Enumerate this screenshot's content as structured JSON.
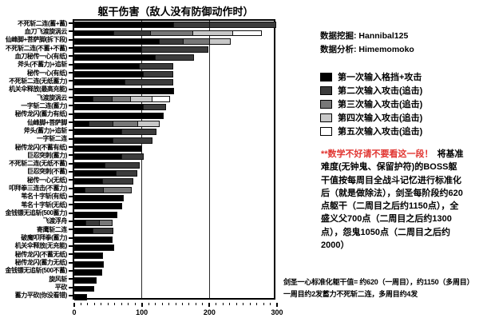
{
  "title": "躯干伤害（敌人没有防御动作时）",
  "credits": {
    "mining_label": "数据挖掘:",
    "mining_value": "Hannibal125",
    "analysis_label": "数据分析:",
    "analysis_value": "Himemomoko"
  },
  "legend": [
    {
      "label": "第一次输入格挡+攻击",
      "color": "#000000"
    },
    {
      "label": "第二次输入攻击(追击)",
      "color": "#3b3b3b"
    },
    {
      "label": "第三次输入攻击(追击)",
      "color": "#787878"
    },
    {
      "label": "第四次输入攻击(追击)",
      "color": "#c8c8c8"
    },
    {
      "label": "第五次输入攻击(追击)",
      "color": "#ffffff"
    }
  ],
  "note": {
    "red_text": "**数学不好请不要看这一段！",
    "black_text": "将基准难度(无钟鬼、保留护符)的BOSS躯干值按每周目全战斗记忆进行标准化后（就是做除法），剑圣每阶段约620点躯干（二周目之后约1150点），全盛义父700点（二周目之后约1300点），怨鬼1050点（二周目之后约2000）"
  },
  "footnote": {
    "line1": "剑圣一心标准化躯干值= 约620（一周目），约1150（多周目）",
    "line2": "一周目约2发蓄力不死斩二连，多周目约4发"
  },
  "red_color": "#e13430",
  "chart_data": {
    "type": "bar",
    "orientation": "horizontal",
    "title": "躯干伤害（敌人没有防御动作时）",
    "xlim": [
      0,
      300
    ],
    "x_ticks": [
      0,
      100,
      200,
      300
    ],
    "minor_tick_step": 10,
    "grid_x": [
      100,
      200
    ],
    "series_colors": [
      "#000000",
      "#3b3b3b",
      "#787878",
      "#c8c8c8",
      "#ffffff"
    ],
    "series_names": [
      "第一次输入格挡+攻击",
      "第二次输入攻击(追击)",
      "第三次输入攻击(追击)",
      "第四次输入攻击(追击)",
      "第五次输入攻击(追击)"
    ],
    "bars": [
      {
        "label": "不死斩二连(蓄+蓄)",
        "segments": [
          {
            "v": 148,
            "c": 0
          },
          {
            "v": 53,
            "c": 1
          },
          {
            "v": 98,
            "c": 1
          }
        ]
      },
      {
        "label": "血刀飞渡旋涡云",
        "segments": [
          {
            "v": 59,
            "c": 0
          },
          {
            "v": 54,
            "c": 1
          },
          {
            "v": 63,
            "c": 2
          },
          {
            "v": 59,
            "c": 3
          },
          {
            "v": 43,
            "c": 4
          }
        ]
      },
      {
        "label": "仙峰脚+菩萨脚(拆下段)",
        "segments": [
          {
            "v": 126,
            "c": 0
          },
          {
            "v": 36,
            "c": 1
          },
          {
            "v": 39,
            "c": 2
          },
          {
            "v": 30,
            "c": 3
          }
        ]
      },
      {
        "label": "不死斩二连(不蓄+不蓄)",
        "segments": [
          {
            "v": 100,
            "c": 0
          },
          {
            "v": 98,
            "c": 1
          }
        ]
      },
      {
        "label": "血刀秘传一心(有纸)",
        "segments": [
          {
            "v": 120,
            "c": 0
          },
          {
            "v": 57,
            "c": 1
          }
        ]
      },
      {
        "label": "斧头(不蓄力)+追斩",
        "segments": [
          {
            "v": 97,
            "c": 0
          },
          {
            "v": 50,
            "c": 1
          }
        ]
      },
      {
        "label": "秘传一心(有纸)",
        "segments": [
          {
            "v": 103,
            "c": 0
          },
          {
            "v": 44,
            "c": 1
          }
        ]
      },
      {
        "label": "不死斩二连(无纸蓄力)",
        "segments": [
          {
            "v": 75,
            "c": 0
          },
          {
            "v": 72,
            "c": 1
          }
        ]
      },
      {
        "label": "机关伞释放(最高充能)",
        "segments": [
          {
            "v": 148,
            "c": 0
          }
        ]
      },
      {
        "label": "飞渡旋涡云",
        "segments": [
          {
            "v": 28,
            "c": 0
          },
          {
            "v": 29,
            "c": 1
          },
          {
            "v": 27,
            "c": 2
          },
          {
            "v": 32,
            "c": 3
          },
          {
            "v": 26,
            "c": 4
          }
        ]
      },
      {
        "label": "一字斩二连(蓄力)",
        "segments": [
          {
            "v": 103,
            "c": 0
          },
          {
            "v": 33,
            "c": 1
          }
        ]
      },
      {
        "label": "秘传龙闪(蓄力有纸)",
        "segments": [
          {
            "v": 132,
            "c": 0
          }
        ]
      },
      {
        "label": "仙峰脚+菩萨脚",
        "segments": [
          {
            "v": 22,
            "c": 0
          },
          {
            "v": 36,
            "c": 1
          },
          {
            "v": 37,
            "c": 2
          },
          {
            "v": 31,
            "c": 3
          }
        ]
      },
      {
        "label": "斧头(蓄力)+追斩",
        "segments": [
          {
            "v": 71,
            "c": 0
          },
          {
            "v": 51,
            "c": 1
          }
        ]
      },
      {
        "label": "一字斩二连",
        "segments": [
          {
            "v": 58,
            "c": 0
          },
          {
            "v": 58,
            "c": 1
          }
        ]
      },
      {
        "label": "秘传龙闪(不蓄有纸)",
        "segments": [
          {
            "v": 100,
            "c": 0
          }
        ]
      },
      {
        "label": "巨忍突刺(蓄力)",
        "segments": [
          {
            "v": 71,
            "c": 0
          },
          {
            "v": 32,
            "c": 1
          }
        ]
      },
      {
        "label": "不死斩二连(无纸不蓄)",
        "segments": [
          {
            "v": 46,
            "c": 0
          },
          {
            "v": 51,
            "c": 1
          }
        ]
      },
      {
        "label": "巨忍突刺(不蓄)",
        "segments": [
          {
            "v": 63,
            "c": 0
          },
          {
            "v": 30,
            "c": 1
          }
        ]
      },
      {
        "label": "秘传一心(无纸)",
        "segments": [
          {
            "v": 42,
            "c": 0
          },
          {
            "v": 45,
            "c": 1
          }
        ]
      },
      {
        "label": "叩拜拳三连击(不蓄力)",
        "segments": [
          {
            "v": 16,
            "c": 0
          },
          {
            "v": 28,
            "c": 1
          },
          {
            "v": 41,
            "c": 2
          }
        ]
      },
      {
        "label": "苇名十字斩(有纸)",
        "segments": [
          {
            "v": 73,
            "c": 0
          }
        ]
      },
      {
        "label": "苇名十字斩(无纸)",
        "segments": [
          {
            "v": 71,
            "c": 0
          }
        ]
      },
      {
        "label": "金钱镖无追斩(500蓄力)",
        "segments": [
          {
            "v": 64,
            "c": 0
          }
        ]
      },
      {
        "label": "飞渡浮舟",
        "segments": [
          {
            "v": 18,
            "c": 0
          },
          {
            "v": 20,
            "c": 1
          },
          {
            "v": 19,
            "c": 2
          }
        ]
      },
      {
        "label": "寄鹰斩二连",
        "segments": [
          {
            "v": 28,
            "c": 0
          },
          {
            "v": 30,
            "c": 1
          }
        ]
      },
      {
        "label": "破魔叩拜拳(蓄力)",
        "segments": [
          {
            "v": 57,
            "c": 0
          }
        ]
      },
      {
        "label": "机关伞释放(无充能)",
        "segments": [
          {
            "v": 59,
            "c": 0
          }
        ]
      },
      {
        "label": "秘传龙闪(不蓄无纸)",
        "segments": [
          {
            "v": 43,
            "c": 0
          }
        ]
      },
      {
        "label": "秘传龙闪(蓄力无纸)",
        "segments": [
          {
            "v": 44,
            "c": 0
          }
        ]
      },
      {
        "label": "金钱镖无追斩(500不蓄)",
        "segments": [
          {
            "v": 41,
            "c": 0
          }
        ]
      },
      {
        "label": "旋风斩",
        "segments": [
          {
            "v": 33,
            "c": 0
          }
        ]
      },
      {
        "label": "平砍",
        "segments": [
          {
            "v": 29,
            "c": 0
          }
        ]
      },
      {
        "label": "蓄力平砍(你没看错)",
        "segments": [
          {
            "v": 19,
            "c": 0
          }
        ]
      }
    ]
  }
}
